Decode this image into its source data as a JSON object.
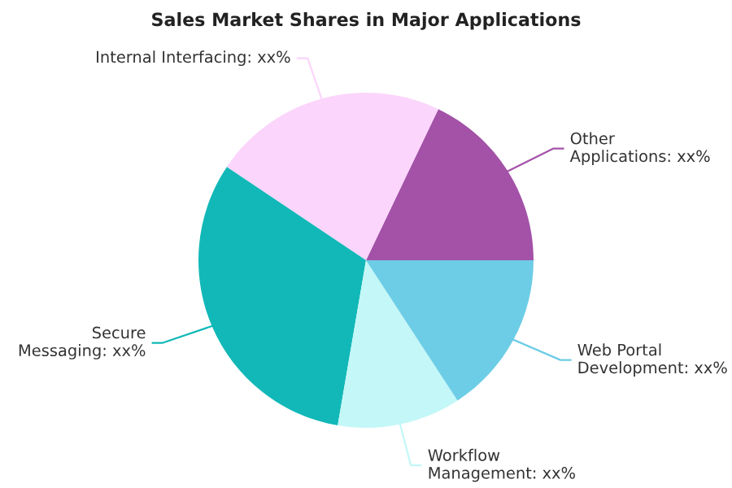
{
  "chart_data": {
    "type": "pie",
    "title": "Sales Market Shares in Major Applications",
    "categories": [
      "Other Applications",
      "Internal Interfacing",
      "Secure Messaging",
      "Workflow Management",
      "Web Portal Development"
    ],
    "values": [
      17.9,
      22.7,
      31.7,
      11.9,
      15.8
    ],
    "colors": [
      "#a352a8",
      "#fbd5fb",
      "#12b8b8",
      "#c4f7f7",
      "#6dcde6"
    ],
    "value_labels": [
      "xx%",
      "xx%",
      "xx%",
      "xx%",
      "xx%"
    ]
  }
}
